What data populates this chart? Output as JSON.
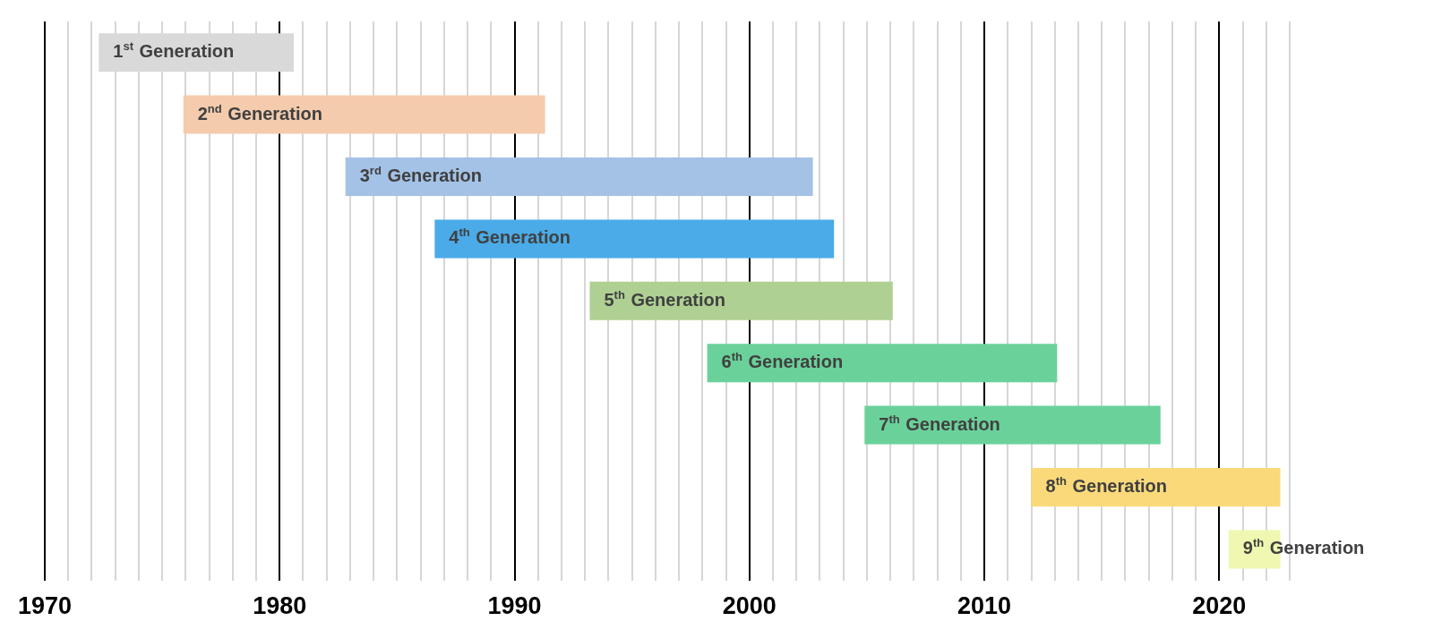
{
  "chart_data": {
    "type": "bar",
    "orientation": "horizontal",
    "tick_labels": "x",
    "grid": "x",
    "legend": false,
    "categories": [
      "1$^{st}$ Generation",
      "2$^{nd}$ Generation",
      "3$^{rd}$ Generation",
      "4$^{th}$ Generation",
      "5$^{th}$ Generation",
      "6$^{th}$ Generation",
      "7$^{th}$ Generation",
      "8$^{th}$ Generation",
      "9$^{th}$ Generation"
    ],
    "base": [
      1972.3,
      1975.9,
      1982.8,
      1986.6,
      1993.2,
      1998.2,
      2004.9,
      2012.0,
      2020.4
    ],
    "values": [
      8.3,
      15.4,
      19.9,
      17.0,
      12.9,
      14.9,
      12.6,
      10.6,
      2.2
    ],
    "colors": [
      "#d9d9d9",
      "#f4cbad",
      "#a4c2e6",
      "#4aabe8",
      "#afd093",
      "#6bd19b",
      "#6bd19b",
      "#f9d97a",
      "#f0f7b0"
    ],
    "xlim": [
      1970,
      2023
    ],
    "xticks": [
      1970,
      {
        "value": 1971,
        "label": null
      },
      {
        "value": 1972,
        "label": null
      },
      {
        "value": 1973,
        "label": null
      },
      {
        "value": 1974,
        "label": null
      },
      {
        "value": 1975,
        "label": null
      },
      {
        "value": 1976,
        "label": null
      },
      {
        "value": 1977,
        "label": null
      },
      {
        "value": 1978,
        "label": null
      },
      {
        "value": 1979,
        "label": null
      },
      1980,
      {
        "value": 1981,
        "label": null
      },
      {
        "value": 1982,
        "label": null
      },
      {
        "value": 1983,
        "label": null
      },
      {
        "value": 1984,
        "label": null
      },
      {
        "value": 1985,
        "label": null
      },
      {
        "value": 1986,
        "label": null
      },
      {
        "value": 1987,
        "label": null
      },
      {
        "value": 1988,
        "label": null
      },
      {
        "value": 1989,
        "label": null
      },
      1990,
      {
        "value": 1991,
        "label": null
      },
      {
        "value": 1992,
        "label": null
      },
      {
        "value": 1993,
        "label": null
      },
      {
        "value": 1994,
        "label": null
      },
      {
        "value": 1995,
        "label": null
      },
      {
        "value": 1996,
        "label": null
      },
      {
        "value": 1997,
        "label": null
      },
      {
        "value": 1998,
        "label": null
      },
      {
        "value": 1999,
        "label": null
      },
      2000,
      {
        "value": 2001,
        "label": null
      },
      {
        "value": 2002,
        "label": null
      },
      {
        "value": 2003,
        "label": null
      },
      {
        "value": 2004,
        "label": null
      },
      {
        "value": 2005,
        "label": null
      },
      {
        "value": 2006,
        "label": null
      },
      {
        "value": 2007,
        "label": null
      },
      {
        "value": 2008,
        "label": null
      },
      {
        "value": 2009,
        "label": null
      },
      2010,
      {
        "value": 2011,
        "label": null
      },
      {
        "value": 2012,
        "label": null
      },
      {
        "value": 2013,
        "label": null
      },
      {
        "value": 2014,
        "label": null
      },
      {
        "value": 2015,
        "label": null
      },
      {
        "value": 2016,
        "label": null
      },
      {
        "value": 2017,
        "label": null
      },
      {
        "value": 2018,
        "label": null
      },
      {
        "value": 2019,
        "label": null
      },
      2020,
      {
        "value": 2021,
        "label": null
      },
      {
        "value": 2022,
        "label": null
      },
      {
        "value": 2023,
        "label": null
      }
    ]
  }
}
